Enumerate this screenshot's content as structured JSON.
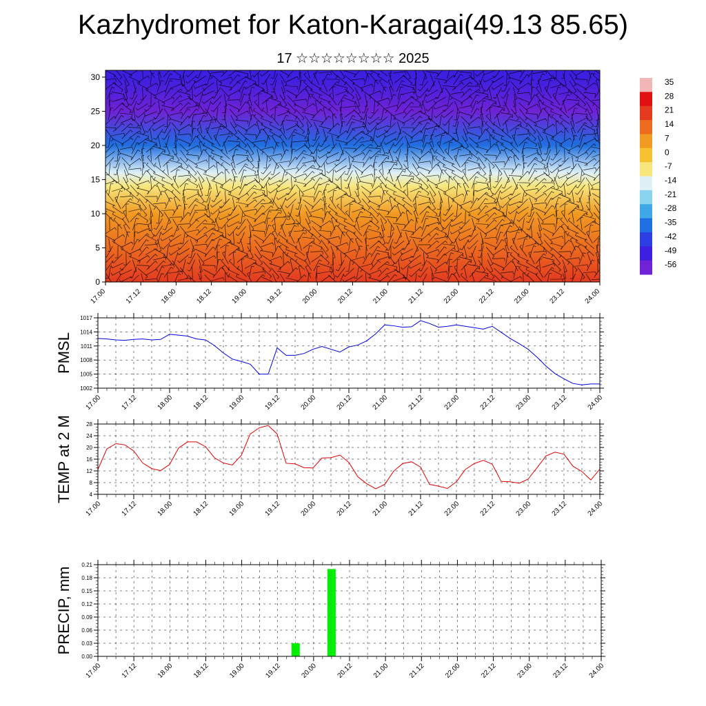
{
  "title": "Kazhydromet for Katon-Karagai(49.13 85.65)",
  "subtitle": "17 ☆☆☆☆☆☆☆☆ 2025",
  "time_labels": [
    "17.00",
    "17.12",
    "18.00",
    "18.12",
    "19.00",
    "19.12",
    "20.00",
    "20.12",
    "21.00",
    "21.12",
    "22.00",
    "22.12",
    "23.00",
    "23.12",
    "24.00"
  ],
  "colorbar": {
    "labels": [
      "35",
      "28",
      "21",
      "14",
      "7",
      "0",
      "-7",
      "-14",
      "-21",
      "-28",
      "-35",
      "-42",
      "-49",
      "-56"
    ],
    "colors": [
      "#f2b6b6",
      "#e01010",
      "#e33a20",
      "#ec6b1f",
      "#f19a22",
      "#f5c232",
      "#f8e67c",
      "#dff1f7",
      "#8ad3ef",
      "#3fa7e6",
      "#1f6fe0",
      "#2d3fe3",
      "#3c1fe0",
      "#6f22d6"
    ]
  },
  "chart_data": [
    {
      "type": "heatmap",
      "title": "Kazhydromet for Katon-Karagai(49.13 85.65)",
      "ylim": [
        0,
        31
      ],
      "yticks": [
        0,
        5,
        10,
        15,
        20,
        25,
        30
      ],
      "x": [
        "17.00",
        "17.12",
        "18.00",
        "18.12",
        "19.00",
        "19.12",
        "20.00",
        "20.12",
        "21.00",
        "21.12",
        "22.00",
        "22.12",
        "23.00",
        "23.12",
        "24.00"
      ],
      "levels": [
        35,
        28,
        21,
        14,
        7,
        0,
        -7,
        -14,
        -21,
        -28,
        -35,
        -42,
        -49,
        -56
      ],
      "vertical_profile_by_height": [
        {
          "height": 0,
          "value": 21
        },
        {
          "height": 5,
          "value": 14
        },
        {
          "height": 10,
          "value": 7
        },
        {
          "height": 14,
          "value": -7
        },
        {
          "height": 16,
          "value": -14
        },
        {
          "height": 20,
          "value": -35
        },
        {
          "height": 25,
          "value": -56
        },
        {
          "height": 30,
          "value": -49
        }
      ]
    },
    {
      "type": "line",
      "ylabel": "PMSL",
      "ylim": [
        1002,
        1017
      ],
      "yticks": [
        1002,
        1005,
        1008,
        1011,
        1014,
        1017
      ],
      "x": [
        "17.00",
        "17.03",
        "17.06",
        "17.09",
        "17.12",
        "17.15",
        "17.18",
        "17.21",
        "18.00",
        "18.03",
        "18.06",
        "18.09",
        "18.12",
        "18.15",
        "18.18",
        "18.21",
        "19.00",
        "19.03",
        "19.06",
        "19.09",
        "19.12",
        "19.15",
        "19.18",
        "19.21",
        "20.00",
        "20.03",
        "20.06",
        "20.09",
        "20.12",
        "20.15",
        "20.18",
        "20.21",
        "21.00",
        "21.03",
        "21.06",
        "21.09",
        "21.12",
        "21.15",
        "21.18",
        "21.21",
        "22.00",
        "22.03",
        "22.06",
        "22.09",
        "22.12",
        "22.15",
        "22.18",
        "22.21",
        "23.00",
        "23.03",
        "23.06",
        "23.09",
        "23.12",
        "23.15",
        "23.18",
        "23.21",
        "24.00"
      ],
      "series": [
        {
          "values": [
            1012.6,
            1012.5,
            1012.3,
            1012.2,
            1012.4,
            1012.5,
            1012.3,
            1012.4,
            1013.5,
            1013.3,
            1013.1,
            1012.5,
            1012.3,
            1011.1,
            1009.5,
            1008.2,
            1007.7,
            1007.1,
            1005.0,
            1005.0,
            1010.6,
            1009.0,
            1009.0,
            1009.4,
            1010.3,
            1010.9,
            1010.3,
            1009.7,
            1010.8,
            1011.2,
            1012.1,
            1013.6,
            1015.5,
            1015.3,
            1015.0,
            1015.1,
            1016.4,
            1015.8,
            1015.0,
            1015.2,
            1015.5,
            1015.2,
            1014.9,
            1014.6,
            1015.2,
            1013.9,
            1012.6,
            1011.5,
            1010.3,
            1008.6,
            1006.7,
            1005.1,
            1004.0,
            1003.0,
            1002.7,
            1002.9,
            1002.9
          ]
        }
      ],
      "color": "#0000e0"
    },
    {
      "type": "line",
      "ylabel": "TEMP at 2 M",
      "ylim": [
        4,
        28
      ],
      "yticks": [
        4,
        8,
        12,
        16,
        20,
        24,
        28
      ],
      "x": [
        "17.00",
        "17.03",
        "17.06",
        "17.09",
        "17.12",
        "17.15",
        "17.18",
        "17.21",
        "18.00",
        "18.03",
        "18.06",
        "18.09",
        "18.12",
        "18.15",
        "18.18",
        "18.21",
        "19.00",
        "19.03",
        "19.06",
        "19.09",
        "19.12",
        "19.15",
        "19.18",
        "19.21",
        "20.00",
        "20.03",
        "20.06",
        "20.09",
        "20.12",
        "20.15",
        "20.18",
        "20.21",
        "21.00",
        "21.03",
        "21.06",
        "21.09",
        "21.12",
        "21.15",
        "21.18",
        "21.21",
        "22.00",
        "22.03",
        "22.06",
        "22.09",
        "22.12",
        "22.15",
        "22.18",
        "22.21",
        "23.00",
        "23.03",
        "23.06",
        "23.09",
        "23.12",
        "23.15",
        "23.18",
        "23.21",
        "24.00"
      ],
      "series": [
        {
          "values": [
            12.5,
            19.5,
            21.3,
            20.9,
            18.8,
            14.7,
            12.8,
            12.1,
            14.2,
            19.8,
            21.9,
            21.9,
            20.3,
            16.5,
            14.7,
            14.0,
            17.3,
            24.6,
            26.7,
            27.5,
            24.6,
            14.6,
            14.4,
            13.1,
            13.0,
            16.4,
            16.5,
            17.4,
            14.9,
            10.0,
            7.6,
            5.9,
            7.4,
            11.9,
            14.5,
            15.1,
            13.3,
            7.4,
            6.8,
            6.0,
            8.3,
            12.5,
            14.5,
            15.6,
            14.3,
            8.4,
            8.3,
            7.8,
            9.2,
            13.1,
            17.1,
            18.4,
            17.7,
            13.6,
            11.8,
            8.9,
            12.6
          ]
        }
      ],
      "color": "#e00000"
    },
    {
      "type": "bar",
      "ylabel": "PRECIP, mm",
      "ylim": [
        0,
        0.21
      ],
      "yticks": [
        "0.00",
        "0.03",
        "0.06",
        "0.09",
        "0.12",
        "0.15",
        "0.18",
        "0.21"
      ],
      "x": [
        "17.00",
        "17.12",
        "18.00",
        "18.12",
        "19.00",
        "19.12",
        "20.00",
        "20.12",
        "21.00",
        "21.12",
        "22.00",
        "22.12",
        "23.00",
        "23.12",
        "24.00"
      ],
      "bars": [
        {
          "time": "19.18",
          "value": 0.03
        },
        {
          "time": "20.06",
          "value": 0.2
        }
      ],
      "color": "#00ee00"
    }
  ]
}
